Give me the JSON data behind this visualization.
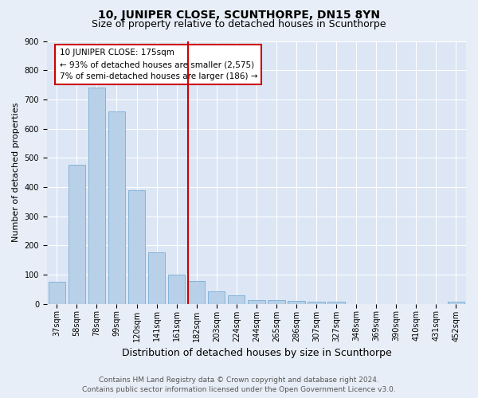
{
  "title": "10, JUNIPER CLOSE, SCUNTHORPE, DN15 8YN",
  "subtitle": "Size of property relative to detached houses in Scunthorpe",
  "xlabel": "Distribution of detached houses by size in Scunthorpe",
  "ylabel": "Number of detached properties",
  "bar_color": "#b8d0e8",
  "bar_edge_color": "#7aadd4",
  "background_color": "#e8eef7",
  "plot_bg_color": "#dce6f5",
  "grid_color": "#ffffff",
  "categories": [
    "37sqm",
    "58sqm",
    "78sqm",
    "99sqm",
    "120sqm",
    "141sqm",
    "161sqm",
    "182sqm",
    "203sqm",
    "224sqm",
    "244sqm",
    "265sqm",
    "286sqm",
    "307sqm",
    "327sqm",
    "348sqm",
    "369sqm",
    "390sqm",
    "410sqm",
    "431sqm",
    "452sqm"
  ],
  "values": [
    75,
    475,
    740,
    660,
    390,
    175,
    100,
    77,
    42,
    30,
    14,
    12,
    10,
    8,
    7,
    0,
    0,
    0,
    0,
    0,
    8
  ],
  "ylim": [
    0,
    900
  ],
  "yticks": [
    0,
    100,
    200,
    300,
    400,
    500,
    600,
    700,
    800,
    900
  ],
  "property_line_label": "10 JUNIPER CLOSE: 175sqm",
  "annotation_smaller": "← 93% of detached houses are smaller (2,575)",
  "annotation_larger": "7% of semi-detached houses are larger (186) →",
  "footer1": "Contains HM Land Registry data © Crown copyright and database right 2024.",
  "footer2": "Contains public sector information licensed under the Open Government Licence v3.0.",
  "annotation_box_color": "#cc0000",
  "vline_color": "#cc0000",
  "title_fontsize": 10,
  "subtitle_fontsize": 9,
  "ylabel_fontsize": 8,
  "xlabel_fontsize": 9,
  "tick_fontsize": 7,
  "annotation_fontsize": 7.5,
  "footer_fontsize": 6.5,
  "vline_index": 7
}
